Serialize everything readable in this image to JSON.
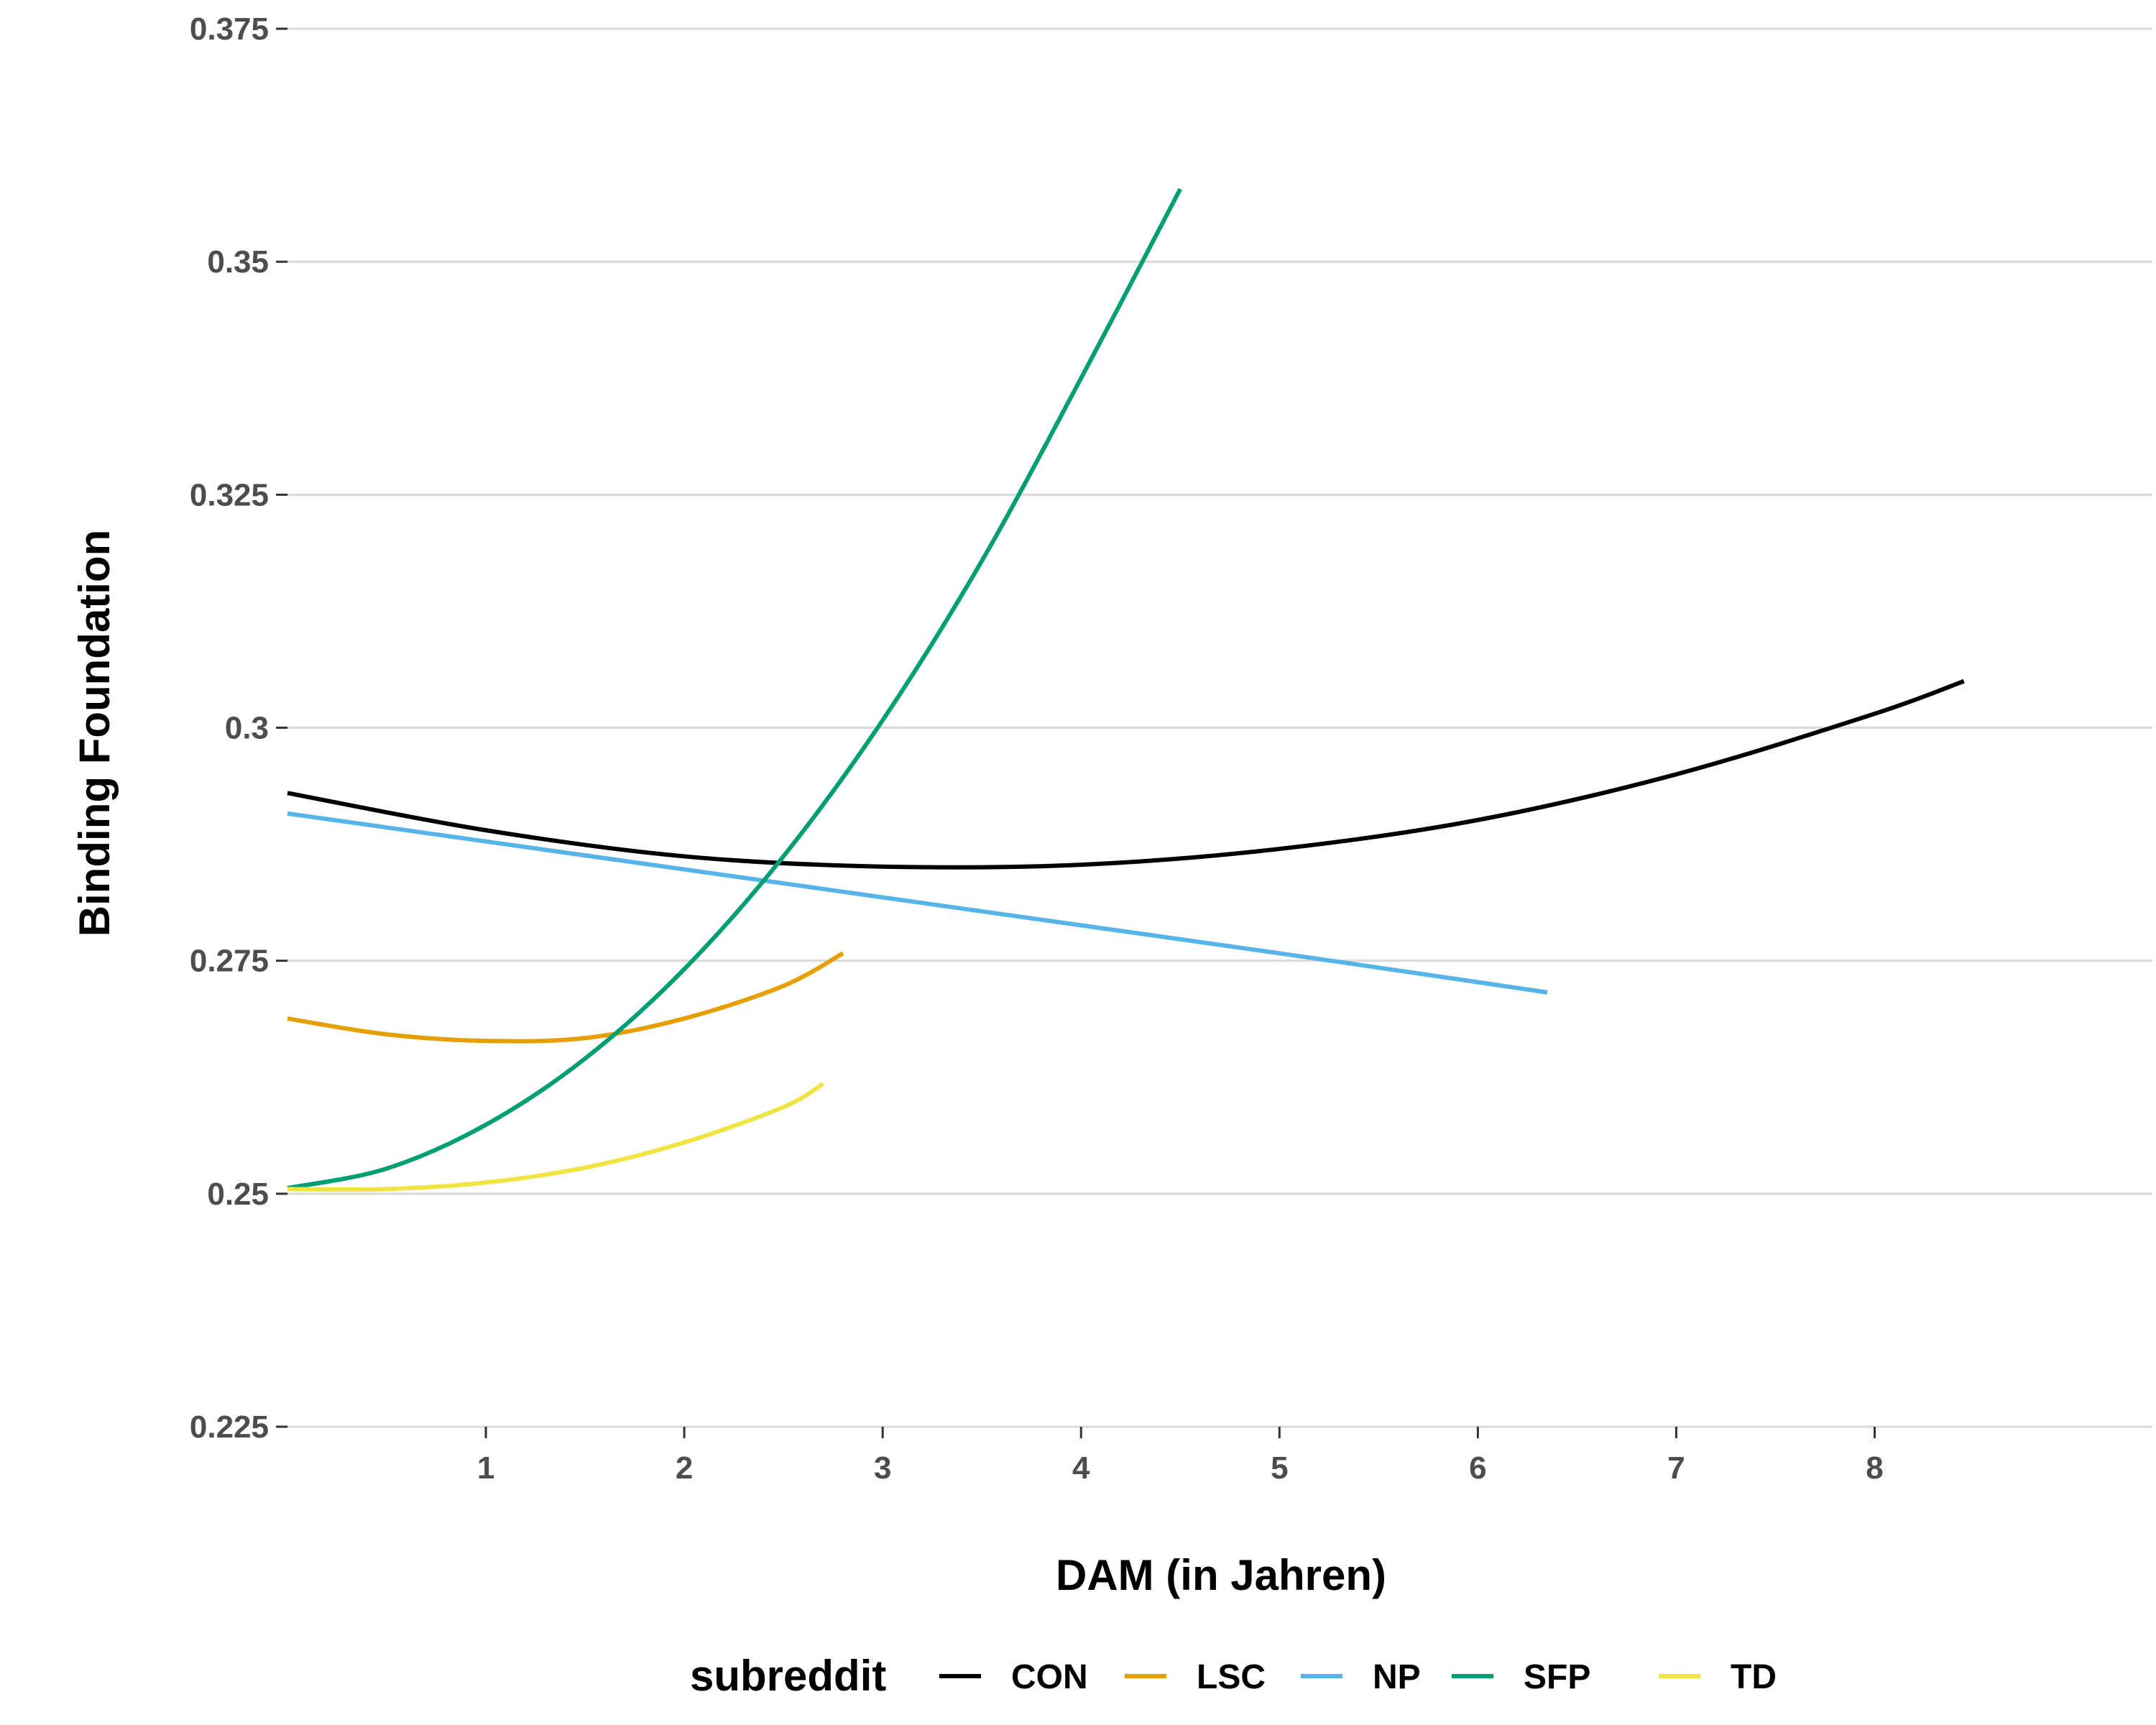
{
  "chart_data": {
    "type": "line",
    "title": "",
    "xlabel": "DAM (in Jahren)",
    "ylabel": "Binding Foundation",
    "xlim": [
      0,
      9.4
    ],
    "ylim": [
      0.225,
      0.375
    ],
    "x_ticks": [
      1,
      2,
      3,
      4,
      5,
      6,
      7,
      8
    ],
    "x_tick_labels": [
      "1",
      "2",
      "3",
      "4",
      "5",
      "6",
      "7",
      "8"
    ],
    "y_ticks": [
      0.225,
      0.25,
      0.275,
      0.3,
      0.325,
      0.35,
      0.375
    ],
    "y_tick_labels": [
      "0.225",
      "0.25",
      "0.275",
      "0.3",
      "0.325",
      "0.35",
      "0.375"
    ],
    "grid": "horizontal",
    "legend": {
      "title": "subreddit",
      "position": "bottom"
    },
    "series": [
      {
        "name": "CON",
        "color": "#000000",
        "x": [
          0,
          1,
          2,
          3,
          4,
          5,
          6,
          7,
          8,
          8.45
        ],
        "y": [
          0.293,
          0.289,
          0.2862,
          0.2851,
          0.2853,
          0.287,
          0.2901,
          0.295,
          0.3015,
          0.305
        ]
      },
      {
        "name": "LSC",
        "color": "#E69F00",
        "x": [
          0,
          0.5,
          1,
          1.5,
          2,
          2.5,
          2.8
        ],
        "y": [
          0.2688,
          0.2671,
          0.2664,
          0.2667,
          0.2688,
          0.2723,
          0.2758
        ]
      },
      {
        "name": "NP",
        "color": "#56B4E9",
        "x": [
          0,
          1,
          2,
          3,
          4,
          5,
          6,
          6.35
        ],
        "y": [
          0.2908,
          0.2878,
          0.2848,
          0.2818,
          0.2788,
          0.2758,
          0.2727,
          0.2716
        ]
      },
      {
        "name": "SFP",
        "color": "#009E73",
        "x": [
          0,
          0.5,
          1,
          1.5,
          2,
          2.5,
          3,
          3.5,
          4,
          4.5
        ],
        "y": [
          0.2506,
          0.2527,
          0.2574,
          0.2645,
          0.2741,
          0.2862,
          0.3008,
          0.3179,
          0.3375,
          0.3578
        ]
      },
      {
        "name": "TD",
        "color": "#F0E442",
        "x": [
          0,
          0.5,
          1,
          1.5,
          2,
          2.5,
          2.7
        ],
        "y": [
          0.2505,
          0.2505,
          0.2512,
          0.2528,
          0.2555,
          0.2593,
          0.2618
        ]
      }
    ]
  }
}
